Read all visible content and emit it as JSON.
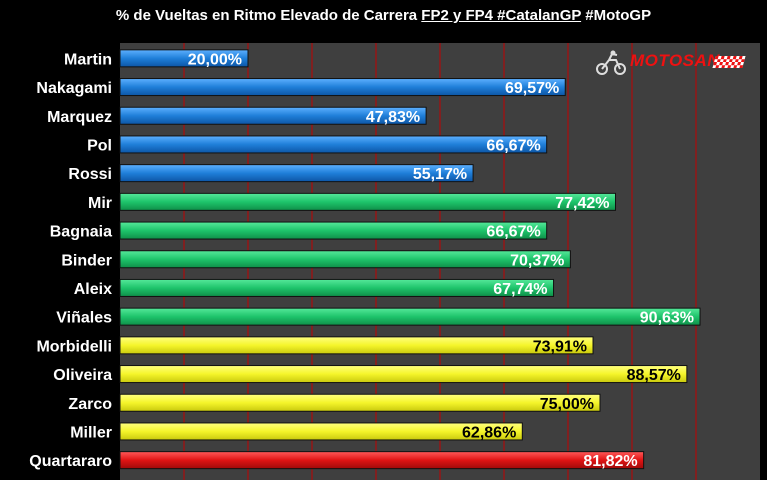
{
  "title": {
    "part1": "% de Vueltas en Ritmo Elevado de Carrera ",
    "part2": "FP2 y FP4 #CatalanGP",
    "part3": " #MotoGP"
  },
  "logo": {
    "text": "MOTOSAN",
    "icon": "motorcycle-rider-icon"
  },
  "chart_data": {
    "type": "bar",
    "orientation": "horizontal",
    "title": "% de Vueltas en Ritmo Elevado de Carrera FP2 y FP4 #CatalanGP #MotoGP",
    "xlim": [
      0,
      100
    ],
    "categories": [
      "Martin",
      "Nakagami",
      "Marquez",
      "Pol",
      "Rossi",
      "Mir",
      "Bagnaia",
      "Binder",
      "Aleix",
      "Viñales",
      "Morbidelli",
      "Oliveira",
      "Zarco",
      "Miller",
      "Quartararo"
    ],
    "values": [
      20.0,
      69.57,
      47.83,
      66.67,
      55.17,
      77.42,
      66.67,
      70.37,
      67.74,
      90.63,
      73.91,
      88.57,
      75.0,
      62.86,
      81.82
    ],
    "value_labels": [
      "20,00%",
      "69,57%",
      "47,83%",
      "66,67%",
      "55,17%",
      "77,42%",
      "66,67%",
      "70,37%",
      "67,74%",
      "90,63%",
      "73,91%",
      "88,57%",
      "75,00%",
      "62,86%",
      "81,82%"
    ],
    "bar_colors": [
      "#1f7fd9",
      "#1f7fd9",
      "#1f7fd9",
      "#1f7fd9",
      "#1f7fd9",
      "#1ec46b",
      "#1ec46b",
      "#1ec46b",
      "#1ec46b",
      "#1ec46b",
      "#f5f52a",
      "#f5f52a",
      "#f5f52a",
      "#f5f52a",
      "#e01414"
    ],
    "label_colors": [
      "#ffffff",
      "#ffffff",
      "#ffffff",
      "#ffffff",
      "#ffffff",
      "#ffffff",
      "#ffffff",
      "#ffffff",
      "#ffffff",
      "#ffffff",
      "#000000",
      "#000000",
      "#000000",
      "#000000",
      "#ffffff"
    ],
    "grid": true,
    "grid_color": "#c00000",
    "legend": "none"
  }
}
